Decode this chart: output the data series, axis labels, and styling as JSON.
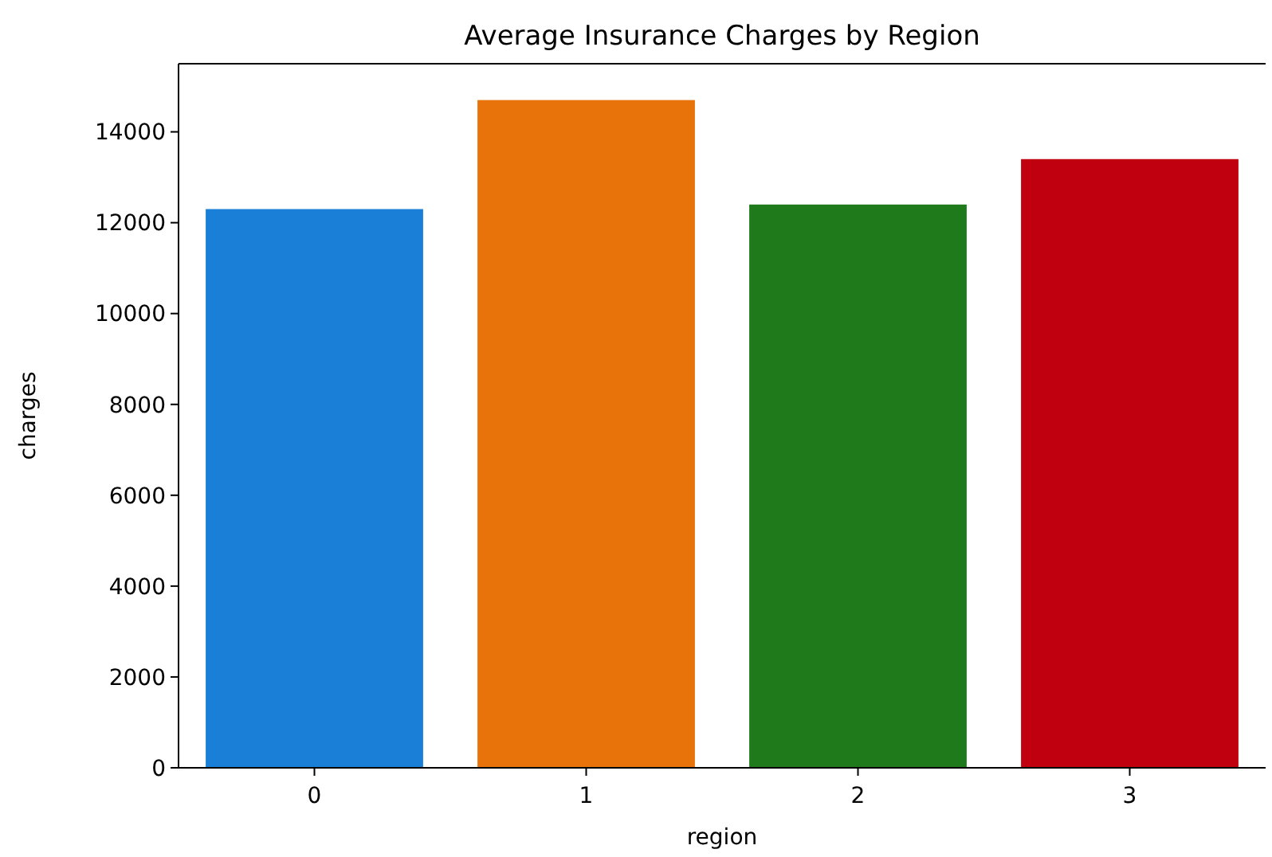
{
  "chart_data": {
    "type": "bar",
    "title": "Average Insurance Charges by Region",
    "xlabel": "region",
    "ylabel": "charges",
    "categories": [
      "0",
      "1",
      "2",
      "3"
    ],
    "values": [
      12300,
      14700,
      12400,
      13400
    ],
    "colors": [
      "#1a7fd6",
      "#e8730a",
      "#1e7a1a",
      "#c0000f"
    ],
    "ylim": [
      0,
      15500
    ],
    "yticks": [
      0,
      2000,
      4000,
      6000,
      8000,
      10000,
      12000,
      14000
    ],
    "grid": false
  }
}
